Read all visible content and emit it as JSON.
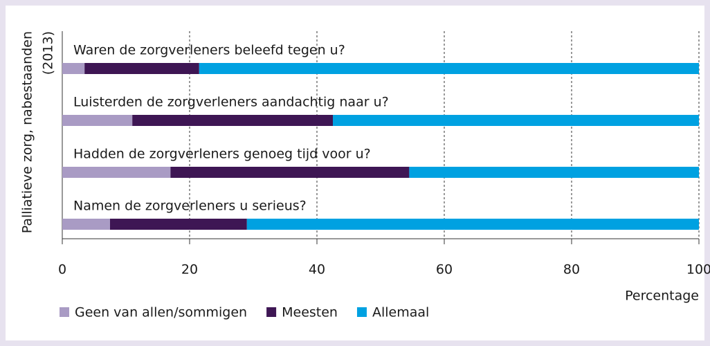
{
  "chart_data": {
    "type": "stacked_barh",
    "ylabel": [
      "Palliatieve zorg, nabestaanden",
      "(2013)"
    ],
    "xlabel": "Percentage",
    "categories": [
      "Waren de zorgverleners beleefd tegen u?",
      "Luisterden de zorgverleners aandachtig naar u?",
      "Hadden de zorgverleners genoeg tijd voor u?",
      "Namen de zorgverleners u serieus?"
    ],
    "series": [
      {
        "name": "Geen van allen/sommigen",
        "color": "#a99bc4",
        "values": [
          3.5,
          11,
          17,
          7.5
        ]
      },
      {
        "name": "Meesten",
        "color": "#3e1654",
        "values": [
          18,
          31.5,
          37.5,
          21.5
        ]
      },
      {
        "name": "Allemaal",
        "color": "#00a1e1",
        "values": [
          78.5,
          57.5,
          45.5,
          71
        ]
      }
    ],
    "xlim": [
      0,
      100
    ],
    "xticks": [
      0,
      20,
      40,
      60,
      80,
      100
    ],
    "grid": true,
    "legend": "bottom-left"
  }
}
